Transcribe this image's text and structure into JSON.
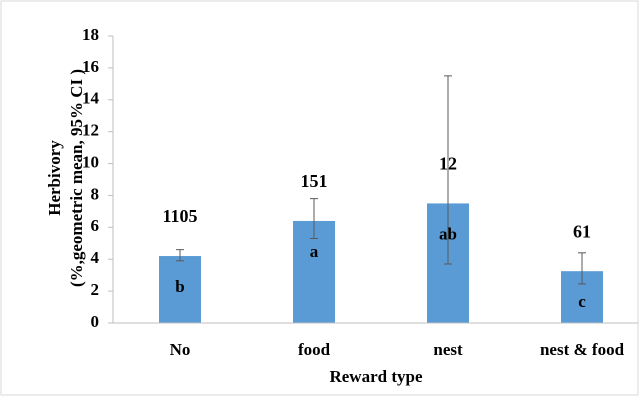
{
  "chart_data": {
    "type": "bar",
    "y_label_lines": [
      "Herbivory",
      "(%,geometric mean, 95% CI )"
    ],
    "x_label": "Reward type",
    "categories": [
      "No",
      "food",
      "nest",
      "nest & food"
    ],
    "values": [
      4.2,
      6.4,
      7.5,
      3.25
    ],
    "ci_low": [
      3.9,
      5.3,
      3.7,
      2.45
    ],
    "ci_high": [
      4.6,
      7.8,
      15.5,
      4.4
    ],
    "count_labels": [
      "1105",
      "151",
      "12",
      "61"
    ],
    "letters": [
      "b",
      "a",
      "ab",
      "c"
    ],
    "color": "#5b9bd5",
    "ylim": [
      0,
      18
    ],
    "yticks": [
      0,
      2,
      4,
      6,
      8,
      10,
      12,
      14,
      16,
      18
    ]
  }
}
